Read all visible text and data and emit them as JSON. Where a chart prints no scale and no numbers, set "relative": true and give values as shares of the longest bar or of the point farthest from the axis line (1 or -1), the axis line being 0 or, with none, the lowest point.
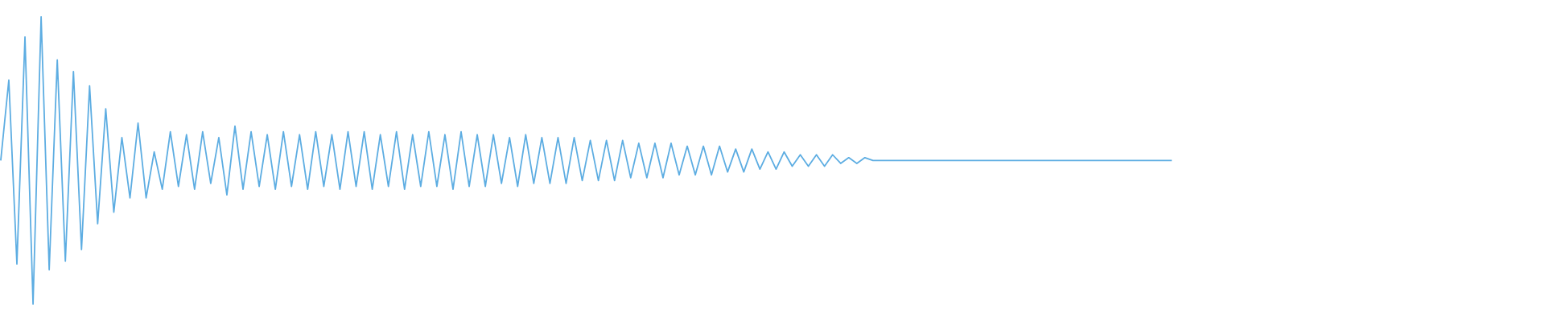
{
  "chart_data": {
    "type": "line",
    "relative": true,
    "color": "#5dade2",
    "categories": [
      null,
      null,
      null,
      null,
      null,
      null,
      null,
      null,
      null,
      null,
      null,
      null,
      null,
      null,
      null,
      null,
      null,
      null,
      null,
      null,
      null,
      null,
      null,
      null,
      null,
      null,
      null,
      null,
      null,
      null,
      null,
      null,
      null,
      null,
      null,
      null,
      null,
      null,
      null,
      null,
      null,
      null,
      null,
      null,
      null,
      null,
      null,
      null,
      null,
      null,
      null,
      null,
      null,
      null,
      null,
      null,
      null,
      null,
      null,
      null,
      null,
      null,
      null,
      null,
      null,
      null,
      null,
      null,
      null,
      null,
      null,
      null,
      null,
      null,
      null,
      null,
      null,
      null,
      null,
      null,
      null,
      null,
      null,
      null,
      null,
      null,
      null,
      null,
      null,
      null,
      null,
      null,
      null,
      null,
      null,
      null,
      null,
      null,
      null,
      null,
      null,
      null,
      null,
      null,
      null,
      null,
      null,
      null,
      null,
      null,
      null,
      null,
      null,
      null,
      null,
      null,
      null,
      null,
      null,
      null,
      null,
      null,
      null,
      null,
      null,
      null,
      null,
      null,
      null,
      null,
      null,
      null,
      null,
      null,
      null,
      null,
      null,
      null,
      null,
      null,
      null,
      null,
      null,
      null,
      null,
      null
    ],
    "values": [
      0.5,
      0.78,
      0.14,
      0.93,
      0.0,
      1.0,
      0.12,
      0.85,
      0.15,
      0.81,
      0.19,
      0.76,
      0.28,
      0.68,
      0.32,
      0.58,
      0.37,
      0.63,
      0.37,
      0.53,
      0.4,
      0.6,
      0.41,
      0.59,
      0.4,
      0.6,
      0.42,
      0.58,
      0.38,
      0.62,
      0.4,
      0.6,
      0.41,
      0.59,
      0.4,
      0.6,
      0.41,
      0.59,
      0.4,
      0.6,
      0.41,
      0.59,
      0.4,
      0.6,
      0.41,
      0.6,
      0.4,
      0.59,
      0.41,
      0.6,
      0.4,
      0.59,
      0.41,
      0.6,
      0.41,
      0.59,
      0.4,
      0.6,
      0.41,
      0.59,
      0.41,
      0.59,
      0.42,
      0.58,
      0.41,
      0.59,
      0.42,
      0.58,
      0.42,
      0.58,
      0.42,
      0.58,
      0.43,
      0.57,
      0.43,
      0.57,
      0.43,
      0.57,
      0.44,
      0.56,
      0.44,
      0.56,
      0.44,
      0.56,
      0.45,
      0.55,
      0.45,
      0.55,
      0.45,
      0.55,
      0.46,
      0.54,
      0.46,
      0.54,
      0.47,
      0.53,
      0.47,
      0.53,
      0.48,
      0.52,
      0.48,
      0.52,
      0.48,
      0.52,
      0.49,
      0.51,
      0.49,
      0.51,
      0.5,
      0.5,
      0.5,
      0.5,
      0.5,
      0.5,
      0.5,
      0.5,
      0.5,
      0.5,
      0.5,
      0.5,
      0.5,
      0.5,
      0.5,
      0.5,
      0.5,
      0.5,
      0.5,
      0.5,
      0.5,
      0.5,
      0.5,
      0.5,
      0.5,
      0.5,
      0.5,
      0.5,
      0.5,
      0.5,
      0.5,
      0.5,
      0.5,
      0.5,
      0.5,
      0.5,
      0.5,
      0.5
    ]
  }
}
